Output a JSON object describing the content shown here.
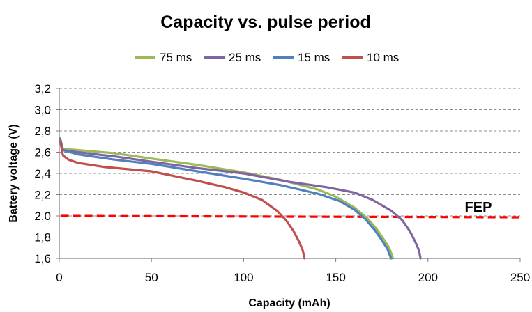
{
  "chart_data": {
    "type": "line",
    "title": "Capacity vs. pulse period",
    "xlabel": "Capacity (mAh)",
    "ylabel": "Battery voltage (V)",
    "xlim": [
      0,
      250
    ],
    "ylim": [
      1.6,
      3.2
    ],
    "x_ticks": [
      "0",
      "50",
      "100",
      "150",
      "200",
      "250"
    ],
    "y_ticks": [
      "1,6",
      "1,8",
      "2,0",
      "2,2",
      "2,4",
      "2,6",
      "2,8",
      "3,0",
      "3,2"
    ],
    "grid": "horizontal-dashed",
    "legend_position": "top",
    "series": [
      {
        "name": "75 ms",
        "color": "#9bbb59",
        "points": [
          [
            0.5,
            2.7
          ],
          [
            2,
            2.63
          ],
          [
            10,
            2.62
          ],
          [
            30,
            2.59
          ],
          [
            50,
            2.54
          ],
          [
            75,
            2.48
          ],
          [
            100,
            2.41
          ],
          [
            120,
            2.34
          ],
          [
            140,
            2.25
          ],
          [
            150,
            2.18
          ],
          [
            160,
            2.08
          ],
          [
            167,
            1.98
          ],
          [
            172,
            1.88
          ],
          [
            176,
            1.78
          ],
          [
            179,
            1.7
          ],
          [
            181,
            1.6
          ]
        ]
      },
      {
        "name": "25 ms",
        "color": "#8064a2",
        "points": [
          [
            0.5,
            2.7
          ],
          [
            2,
            2.62
          ],
          [
            10,
            2.6
          ],
          [
            30,
            2.56
          ],
          [
            50,
            2.51
          ],
          [
            75,
            2.45
          ],
          [
            100,
            2.4
          ],
          [
            125,
            2.32
          ],
          [
            145,
            2.27
          ],
          [
            160,
            2.22
          ],
          [
            170,
            2.15
          ],
          [
            180,
            2.05
          ],
          [
            186,
            1.96
          ],
          [
            190,
            1.86
          ],
          [
            193,
            1.76
          ],
          [
            195,
            1.68
          ],
          [
            196,
            1.6
          ]
        ]
      },
      {
        "name": "15 ms",
        "color": "#4f81bd",
        "points": [
          [
            0.5,
            2.73
          ],
          [
            2,
            2.62
          ],
          [
            10,
            2.58
          ],
          [
            30,
            2.53
          ],
          [
            50,
            2.49
          ],
          [
            75,
            2.42
          ],
          [
            100,
            2.35
          ],
          [
            120,
            2.29
          ],
          [
            140,
            2.21
          ],
          [
            152,
            2.14
          ],
          [
            160,
            2.06
          ],
          [
            166,
            1.97
          ],
          [
            171,
            1.87
          ],
          [
            175,
            1.77
          ],
          [
            178,
            1.69
          ],
          [
            180,
            1.6
          ]
        ]
      },
      {
        "name": "10 ms",
        "color": "#c0504d",
        "points": [
          [
            0.5,
            2.71
          ],
          [
            2,
            2.57
          ],
          [
            5,
            2.53
          ],
          [
            10,
            2.5
          ],
          [
            25,
            2.46
          ],
          [
            50,
            2.42
          ],
          [
            75,
            2.33
          ],
          [
            90,
            2.27
          ],
          [
            100,
            2.22
          ],
          [
            110,
            2.15
          ],
          [
            118,
            2.05
          ],
          [
            123,
            1.96
          ],
          [
            127,
            1.86
          ],
          [
            130,
            1.76
          ],
          [
            132,
            1.68
          ],
          [
            133,
            1.6
          ]
        ]
      }
    ],
    "reference_lines": [
      {
        "label": "FEP",
        "y": 2.0,
        "color": "#ff0000",
        "style": "dashed"
      }
    ],
    "annotations": [
      "FEP"
    ]
  }
}
